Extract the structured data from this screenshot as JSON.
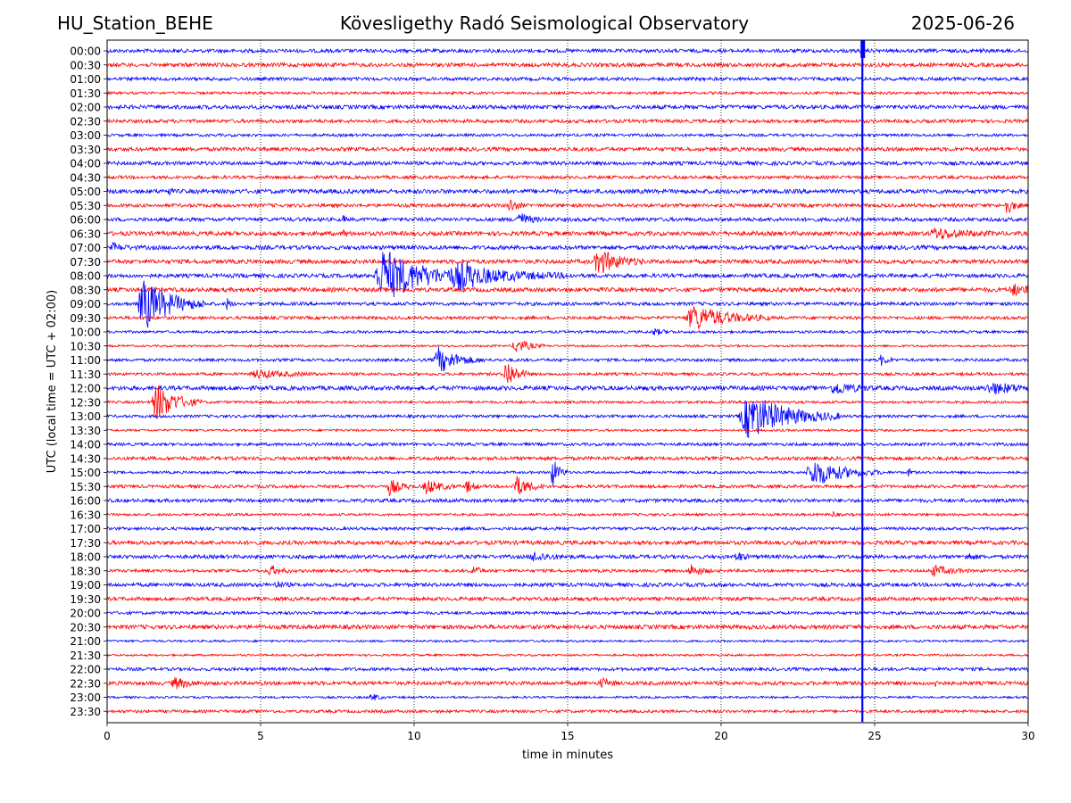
{
  "header": {
    "station": "HU_Station_BEHE",
    "title": "Kövesligethy Radó Seismological Observatory",
    "date": "2025-06-26"
  },
  "chart_data": {
    "type": "line",
    "title": "Kövesligethy Radó Seismological Observatory",
    "xlabel": "time in minutes",
    "ylabel": "UTC (local time = UTC + 02:00)",
    "xlim": [
      0,
      30
    ],
    "xticks": [
      0,
      5,
      10,
      15,
      20,
      25,
      30
    ],
    "grid": "vertical dotted",
    "colors": [
      "#0000ff",
      "#ff0000"
    ],
    "rows": [
      "00:00",
      "00:30",
      "01:00",
      "01:30",
      "02:00",
      "02:30",
      "03:00",
      "03:30",
      "04:00",
      "04:30",
      "05:00",
      "05:30",
      "06:00",
      "06:30",
      "07:00",
      "07:30",
      "08:00",
      "08:30",
      "09:00",
      "09:30",
      "10:00",
      "10:30",
      "11:00",
      "11:30",
      "12:00",
      "12:30",
      "13:00",
      "13:30",
      "14:00",
      "14:30",
      "15:00",
      "15:30",
      "16:00",
      "16:30",
      "17:00",
      "17:30",
      "18:00",
      "18:30",
      "19:00",
      "19:30",
      "20:00",
      "20:30",
      "21:00",
      "21:30",
      "22:00",
      "22:30",
      "23:00",
      "23:30"
    ],
    "events": [
      {
        "row": "00:00",
        "t": 28.45,
        "amp": 0.8,
        "dur": 0.05
      },
      {
        "row": "05:00",
        "t": 2.0,
        "amp": 0.5,
        "dur": 0.05
      },
      {
        "row": "05:30",
        "t": 13.1,
        "amp": 0.7,
        "dur": 0.2
      },
      {
        "row": "05:30",
        "t": 29.3,
        "amp": 0.8,
        "dur": 0.2
      },
      {
        "row": "06:00",
        "t": 7.7,
        "amp": 0.5,
        "dur": 0.05
      },
      {
        "row": "06:00",
        "t": 13.4,
        "amp": 0.7,
        "dur": 0.3
      },
      {
        "row": "06:30",
        "t": 7.7,
        "amp": 0.3,
        "dur": 0.1
      },
      {
        "row": "06:30",
        "t": 27.0,
        "amp": 0.5,
        "dur": 0.8
      },
      {
        "row": "07:00",
        "t": 0.2,
        "amp": 0.3,
        "dur": 0.3
      },
      {
        "row": "07:30",
        "t": 16.0,
        "amp": 1.2,
        "dur": 0.6
      },
      {
        "row": "08:00",
        "t": 9.0,
        "amp": 2.5,
        "dur": 1.2
      },
      {
        "row": "08:00",
        "t": 11.5,
        "amp": 1.0,
        "dur": 1.5
      },
      {
        "row": "08:30",
        "t": 29.5,
        "amp": 0.5,
        "dur": 0.5
      },
      {
        "row": "09:00",
        "t": 1.2,
        "amp": 2.5,
        "dur": 0.8
      },
      {
        "row": "09:00",
        "t": 3.9,
        "amp": 0.6,
        "dur": 0.1
      },
      {
        "row": "09:30",
        "t": 19.1,
        "amp": 1.2,
        "dur": 1.0
      },
      {
        "row": "10:00",
        "t": 17.8,
        "amp": 0.3,
        "dur": 0.3
      },
      {
        "row": "10:30",
        "t": 13.3,
        "amp": 0.7,
        "dur": 0.4
      },
      {
        "row": "11:00",
        "t": 10.8,
        "amp": 1.2,
        "dur": 0.6
      },
      {
        "row": "11:00",
        "t": 25.2,
        "amp": 0.5,
        "dur": 0.2
      },
      {
        "row": "11:30",
        "t": 13.0,
        "amp": 1.5,
        "dur": 0.3
      },
      {
        "row": "11:30",
        "t": 4.9,
        "amp": 0.4,
        "dur": 0.8
      },
      {
        "row": "12:00",
        "t": 23.7,
        "amp": 0.6,
        "dur": 0.5
      },
      {
        "row": "12:00",
        "t": 28.8,
        "amp": 0.5,
        "dur": 0.8
      },
      {
        "row": "12:30",
        "t": 1.6,
        "amp": 1.8,
        "dur": 0.6
      },
      {
        "row": "13:00",
        "t": 20.9,
        "amp": 2.2,
        "dur": 1.2
      },
      {
        "row": "15:00",
        "t": 14.5,
        "amp": 1.5,
        "dur": 0.2
      },
      {
        "row": "15:00",
        "t": 23.0,
        "amp": 1.3,
        "dur": 0.9
      },
      {
        "row": "15:00",
        "t": 26.1,
        "amp": 0.4,
        "dur": 0.1
      },
      {
        "row": "15:30",
        "t": 9.2,
        "amp": 0.8,
        "dur": 0.3
      },
      {
        "row": "15:30",
        "t": 10.4,
        "amp": 0.7,
        "dur": 0.4
      },
      {
        "row": "15:30",
        "t": 11.7,
        "amp": 0.6,
        "dur": 0.2
      },
      {
        "row": "15:30",
        "t": 13.3,
        "amp": 1.0,
        "dur": 0.4
      },
      {
        "row": "16:30",
        "t": 23.6,
        "amp": 0.4,
        "dur": 0.1
      },
      {
        "row": "18:00",
        "t": 13.9,
        "amp": 0.4,
        "dur": 0.5
      },
      {
        "row": "18:00",
        "t": 20.5,
        "amp": 0.5,
        "dur": 0.2
      },
      {
        "row": "18:00",
        "t": 28.0,
        "amp": 0.4,
        "dur": 0.2
      },
      {
        "row": "18:30",
        "t": 5.3,
        "amp": 0.5,
        "dur": 0.3
      },
      {
        "row": "18:30",
        "t": 11.9,
        "amp": 0.5,
        "dur": 0.2
      },
      {
        "row": "18:30",
        "t": 19.0,
        "amp": 0.6,
        "dur": 0.3
      },
      {
        "row": "18:30",
        "t": 26.9,
        "amp": 0.5,
        "dur": 0.5
      },
      {
        "row": "19:00",
        "t": 5.5,
        "amp": 0.3,
        "dur": 0.2
      },
      {
        "row": "22:30",
        "t": 2.2,
        "amp": 0.5,
        "dur": 0.4
      },
      {
        "row": "22:30",
        "t": 16.1,
        "amp": 0.5,
        "dur": 0.2
      },
      {
        "row": "22:30",
        "t": 27.0,
        "amp": 0.7,
        "dur": 0.1
      },
      {
        "row": "23:00",
        "t": 8.6,
        "amp": 0.4,
        "dur": 0.2
      }
    ],
    "spike": {
      "t": 24.6,
      "from_row": "00:00",
      "to_row": "23:30"
    }
  }
}
